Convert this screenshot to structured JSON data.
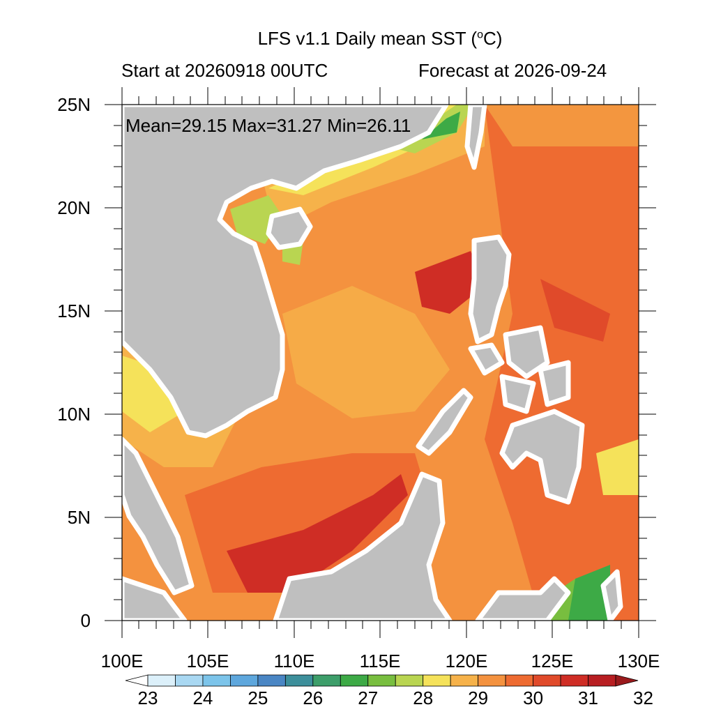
{
  "title": "LFS v1.1 Daily mean SST (°C)",
  "title_prefix": "LFS v1.1 Daily mean SST (",
  "title_degree": "o",
  "title_suffix": "C)",
  "start_label": "Start at 20260918 00UTC",
  "forecast_label": "Forecast at 2026-09-24",
  "stats": "Mean=29.15  Max=31.27  Min=26.11",
  "lat_ticks": [
    "25N",
    "20N",
    "15N",
    "10N",
    "5N",
    "0"
  ],
  "lon_ticks": [
    "100E",
    "105E",
    "110E",
    "115E",
    "120E",
    "125E",
    "130E"
  ],
  "colorbar": {
    "labels": [
      "23",
      "24",
      "25",
      "26",
      "27",
      "28",
      "29",
      "30",
      "31",
      "32"
    ],
    "colors": [
      "#ffffff",
      "#dcf0fa",
      "#a9d8f2",
      "#7cc4ea",
      "#5ea7dd",
      "#4a86c4",
      "#3d8f9b",
      "#3d9e6a",
      "#3daa46",
      "#78be3f",
      "#b9d551",
      "#f5e25a",
      "#f6b24a",
      "#f4923f",
      "#ee6b31",
      "#e04a2a",
      "#cf2d25",
      "#b81e22",
      "#9a1a1c"
    ]
  },
  "colors": {
    "land": "#bfbfbf",
    "sea_base": "#f4923f"
  }
}
